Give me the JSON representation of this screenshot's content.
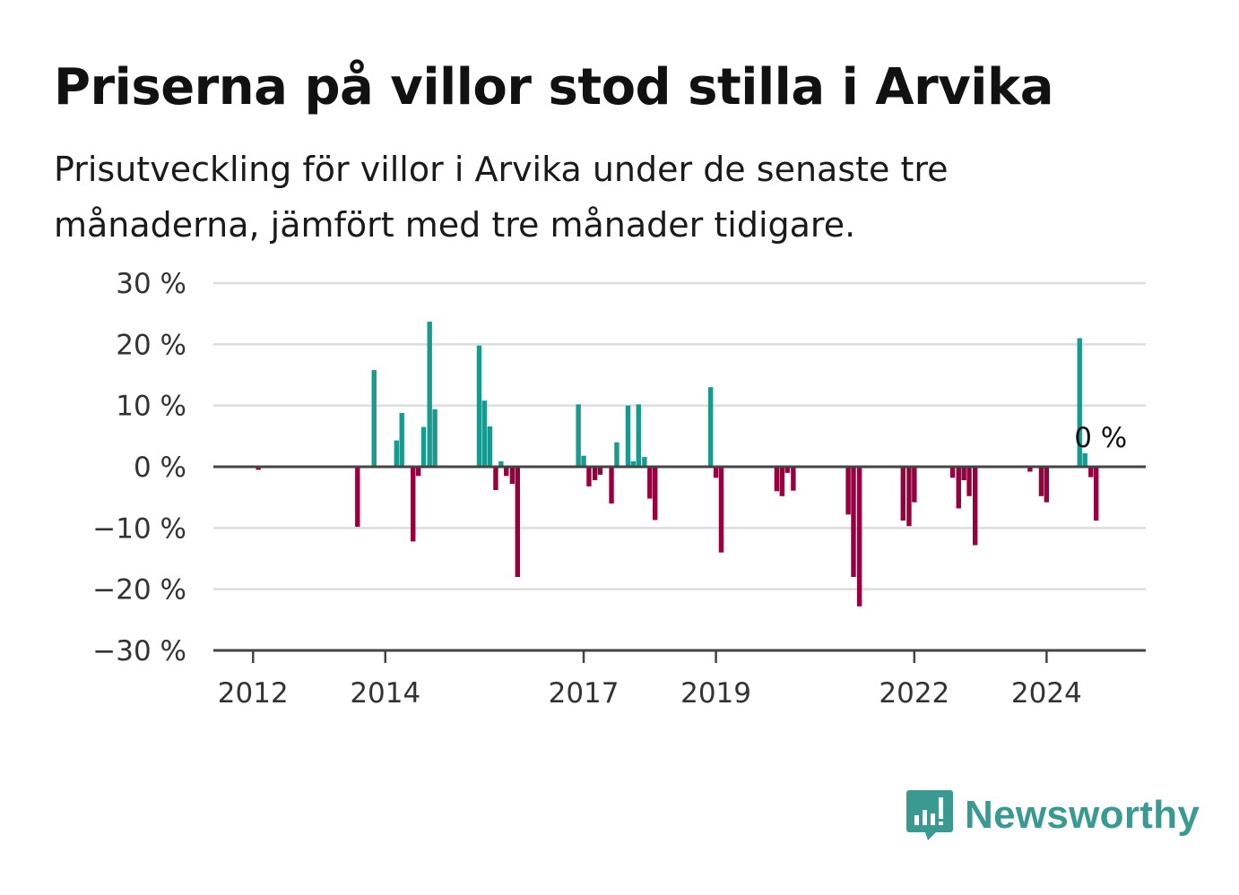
{
  "title": "Priserna på villor stod stilla i Arvika",
  "subtitle": "Prisutveckling för villor i Arvika under de senaste tre månaderna, jämfört med tre månader tidigare.",
  "brand": {
    "name": "Newsworthy",
    "color": "#3a9a92",
    "icon": "bar-chart-speech-bubble-icon"
  },
  "colors": {
    "positive": "#1a9a8f",
    "negative": "#95003f",
    "grid": "#dddddd",
    "axis": "#444444"
  },
  "chart_data": {
    "type": "bar",
    "title": "Priserna på villor stod stilla i Arvika",
    "xlabel": "",
    "ylabel": "",
    "ylim": [
      -30,
      30
    ],
    "yticks": [
      "30 %",
      "20 %",
      "10 %",
      "0 %",
      "−10 %",
      "−20 %",
      "−30 %"
    ],
    "ytick_values": [
      30,
      20,
      10,
      0,
      -10,
      -20,
      -30
    ],
    "xticks": [
      "2012",
      "2014",
      "2017",
      "2019",
      "2022",
      "2024"
    ],
    "xtick_values": [
      2012.0,
      2014.0,
      2017.0,
      2019.0,
      2022.0,
      2024.0
    ],
    "x_range": [
      2011.4,
      2025.5
    ],
    "grid": true,
    "last_value_label": "0 %",
    "last_value_x": 2024.5,
    "bars": [
      {
        "x": 2012.08,
        "y": -0.5
      },
      {
        "x": 2013.58,
        "y": -9.8
      },
      {
        "x": 2013.83,
        "y": 15.8
      },
      {
        "x": 2014.17,
        "y": 4.3
      },
      {
        "x": 2014.25,
        "y": 8.8
      },
      {
        "x": 2014.42,
        "y": -12.2
      },
      {
        "x": 2014.5,
        "y": -1.5
      },
      {
        "x": 2014.58,
        "y": 6.5
      },
      {
        "x": 2014.67,
        "y": 23.7
      },
      {
        "x": 2014.75,
        "y": 9.4
      },
      {
        "x": 2015.42,
        "y": 19.8
      },
      {
        "x": 2015.5,
        "y": 10.8
      },
      {
        "x": 2015.58,
        "y": 6.6
      },
      {
        "x": 2015.67,
        "y": -3.8
      },
      {
        "x": 2015.75,
        "y": 0.9
      },
      {
        "x": 2015.83,
        "y": -1.5
      },
      {
        "x": 2015.92,
        "y": -2.8
      },
      {
        "x": 2016.0,
        "y": -18.0
      },
      {
        "x": 2016.92,
        "y": 10.2
      },
      {
        "x": 2017.0,
        "y": 1.8
      },
      {
        "x": 2017.08,
        "y": -3.2
      },
      {
        "x": 2017.17,
        "y": -2.2
      },
      {
        "x": 2017.25,
        "y": -1.3
      },
      {
        "x": 2017.42,
        "y": -6.0
      },
      {
        "x": 2017.5,
        "y": 4.0
      },
      {
        "x": 2017.67,
        "y": 10.0
      },
      {
        "x": 2017.75,
        "y": 0.9
      },
      {
        "x": 2017.83,
        "y": 10.2
      },
      {
        "x": 2017.92,
        "y": 1.6
      },
      {
        "x": 2018.0,
        "y": -5.2
      },
      {
        "x": 2018.08,
        "y": -8.7
      },
      {
        "x": 2018.92,
        "y": 13.0
      },
      {
        "x": 2019.0,
        "y": -1.8
      },
      {
        "x": 2019.08,
        "y": -14.0
      },
      {
        "x": 2019.92,
        "y": -4.0
      },
      {
        "x": 2020.0,
        "y": -4.8
      },
      {
        "x": 2020.08,
        "y": -1.0
      },
      {
        "x": 2020.17,
        "y": -3.9
      },
      {
        "x": 2021.0,
        "y": -7.8
      },
      {
        "x": 2021.08,
        "y": -18.0
      },
      {
        "x": 2021.17,
        "y": -22.8
      },
      {
        "x": 2021.83,
        "y": -8.8
      },
      {
        "x": 2021.92,
        "y": -9.7
      },
      {
        "x": 2022.0,
        "y": -5.8
      },
      {
        "x": 2022.58,
        "y": -1.8
      },
      {
        "x": 2022.67,
        "y": -6.8
      },
      {
        "x": 2022.75,
        "y": -2.2
      },
      {
        "x": 2022.83,
        "y": -4.8
      },
      {
        "x": 2022.92,
        "y": -12.8
      },
      {
        "x": 2023.75,
        "y": -0.8
      },
      {
        "x": 2023.92,
        "y": -4.8
      },
      {
        "x": 2024.0,
        "y": -5.8
      },
      {
        "x": 2024.5,
        "y": 21.0
      },
      {
        "x": 2024.58,
        "y": 2.2
      },
      {
        "x": 2024.67,
        "y": -1.7
      },
      {
        "x": 2024.75,
        "y": -8.8
      }
    ]
  }
}
